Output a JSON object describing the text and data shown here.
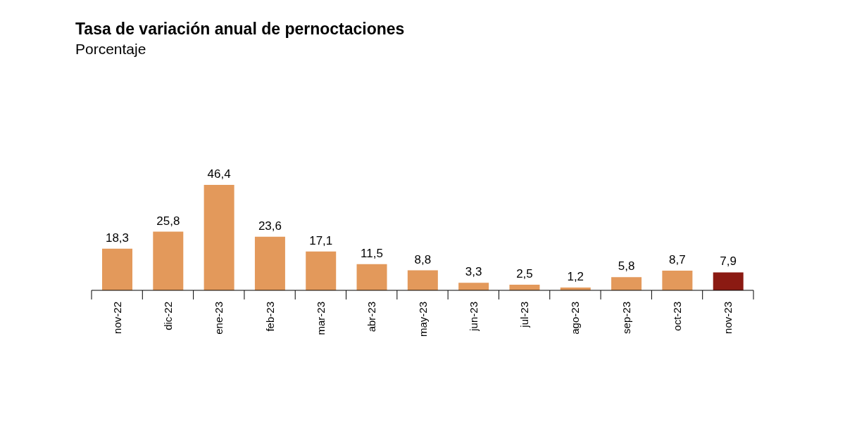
{
  "chart_data": {
    "type": "bar",
    "title": "Tasa de variación anual de pernoctaciones",
    "subtitle": "Porcentaje",
    "categories": [
      "nov-22",
      "dic-22",
      "ene-23",
      "feb-23",
      "mar-23",
      "abr-23",
      "may-23",
      "jun-23",
      "jul-23",
      "ago-23",
      "sep-23",
      "oct-23",
      "nov-23"
    ],
    "values": [
      18.3,
      25.8,
      46.4,
      23.6,
      17.1,
      11.5,
      8.8,
      3.3,
      2.5,
      1.2,
      5.8,
      8.7,
      7.9
    ],
    "value_labels": [
      "18,3",
      "25,8",
      "46,4",
      "23,6",
      "17,1",
      "11,5",
      "8,8",
      "3,3",
      "2,5",
      "1,2",
      "5,8",
      "8,7",
      "7,9"
    ],
    "colors": [
      "#e3995b",
      "#e3995b",
      "#e3995b",
      "#e3995b",
      "#e3995b",
      "#e3995b",
      "#e3995b",
      "#e3995b",
      "#e3995b",
      "#e3995b",
      "#e3995b",
      "#e3995b",
      "#8b1a12"
    ]
  }
}
